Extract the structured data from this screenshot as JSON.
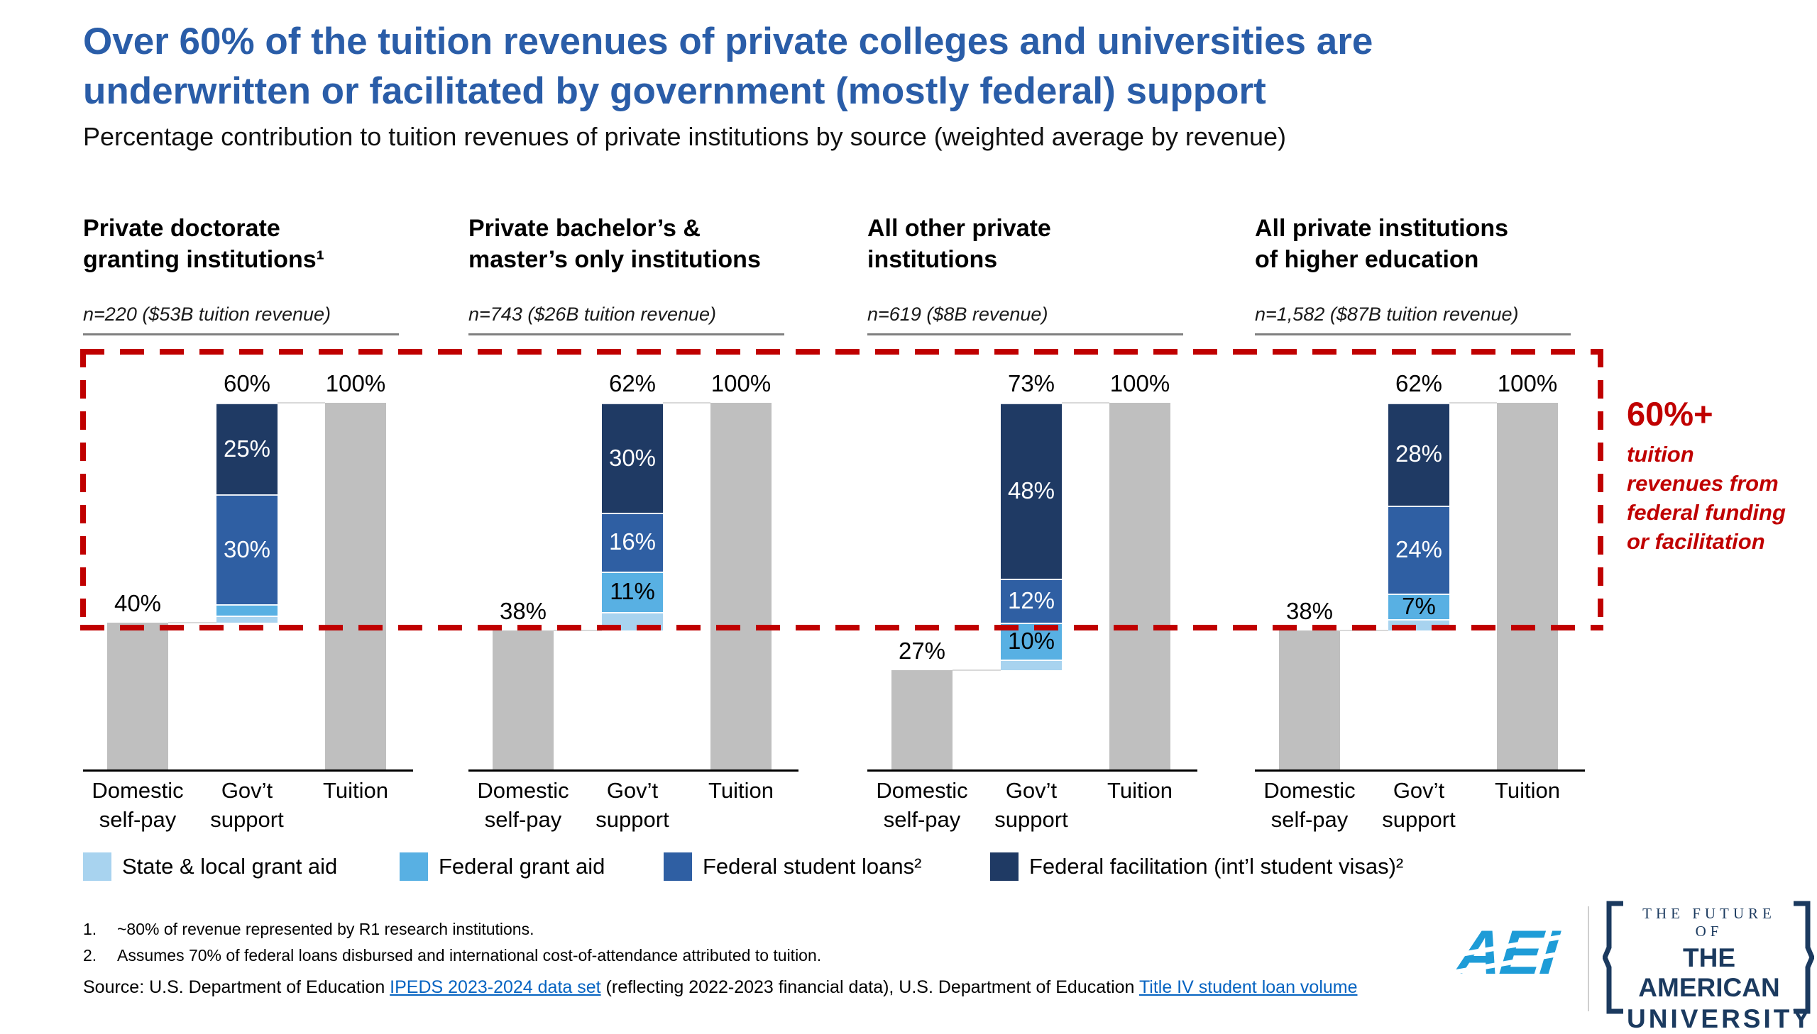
{
  "title": "Over 60% of the tuition revenues of private colleges and universities are\nunderwritten or facilitated by government (mostly federal) support",
  "subtitle": "Percentage contribution to tuition revenues of private institutions by source (weighted average by revenue)",
  "colors": {
    "title_blue": "#2A5DA8",
    "accent_red": "#C00000",
    "bar_gray": "#BFBFBF",
    "state_local_blue": "#A8D3EF",
    "federal_grant_blue": "#58B0E3",
    "student_loans_blue": "#2F5FA3",
    "facilitation_navy": "#1F3A64",
    "link_blue": "#0563C1",
    "aei_blue": "#1E9CD7",
    "logo_navy": "#1B3A5F",
    "connector_gray": "#D9D9D9"
  },
  "chart_data": {
    "type": "bar",
    "subtype": "waterfall_stacked_percent",
    "unit": "%",
    "ylim": [
      0,
      100
    ],
    "categories": [
      "Domestic\nself-pay",
      "Gov’t\nsupport",
      "Tuition"
    ],
    "legend": [
      {
        "key": "state_local_blue",
        "label": "State & local grant aid"
      },
      {
        "key": "federal_grant_blue",
        "label": "Federal grant aid"
      },
      {
        "key": "student_loans_blue",
        "label": "Federal student loans²"
      },
      {
        "key": "facilitation_navy",
        "label": "Federal facilitation (int’l student visas)²"
      }
    ],
    "groups": [
      {
        "title": "Private doctorate\ngranting institutions¹",
        "n_label": "n=220 ($53B tuition revenue)",
        "domestic_self_pay": {
          "value": 40,
          "label": "40%"
        },
        "govt_support": {
          "total": 60,
          "label": "60%",
          "segments": [
            {
              "key": "state_local_blue",
              "name": "State & local grant aid",
              "value": 2,
              "label": "",
              "label_color": "#000000"
            },
            {
              "key": "federal_grant_blue",
              "name": "Federal grant aid",
              "value": 3,
              "label": "",
              "label_color": "#000000"
            },
            {
              "key": "student_loans_blue",
              "name": "Federal student loans",
              "value": 30,
              "label": "30%",
              "label_color": "#FFFFFF"
            },
            {
              "key": "facilitation_navy",
              "name": "Federal facilitation (int’l student visas)",
              "value": 25,
              "label": "25%",
              "label_color": "#FFFFFF"
            }
          ]
        },
        "tuition": {
          "value": 100,
          "label": "100%"
        }
      },
      {
        "title": "Private bachelor’s &\nmaster’s only institutions",
        "n_label": "n=743 ($26B tuition revenue)",
        "domestic_self_pay": {
          "value": 38,
          "label": "38%"
        },
        "govt_support": {
          "total": 62,
          "label": "62%",
          "segments": [
            {
              "key": "state_local_blue",
              "name": "State & local grant aid",
              "value": 5,
              "label": "",
              "label_color": "#000000"
            },
            {
              "key": "federal_grant_blue",
              "name": "Federal grant aid",
              "value": 11,
              "label": "11%",
              "label_color": "#000000"
            },
            {
              "key": "student_loans_blue",
              "name": "Federal student loans",
              "value": 16,
              "label": "16%",
              "label_color": "#FFFFFF"
            },
            {
              "key": "facilitation_navy",
              "name": "Federal facilitation (int’l student visas)",
              "value": 30,
              "label": "30%",
              "label_color": "#FFFFFF"
            }
          ]
        },
        "tuition": {
          "value": 100,
          "label": "100%"
        }
      },
      {
        "title": "All other private\ninstitutions",
        "n_label": "n=619 ($8B revenue)",
        "domestic_self_pay": {
          "value": 27,
          "label": "27%"
        },
        "govt_support": {
          "total": 73,
          "label": "73%",
          "segments": [
            {
              "key": "state_local_blue",
              "name": "State & local grant aid",
              "value": 3,
              "label": "",
              "label_color": "#000000"
            },
            {
              "key": "federal_grant_blue",
              "name": "Federal grant aid",
              "value": 10,
              "label": "10%",
              "label_color": "#000000"
            },
            {
              "key": "student_loans_blue",
              "name": "Federal student loans",
              "value": 12,
              "label": "12%",
              "label_color": "#FFFFFF"
            },
            {
              "key": "facilitation_navy",
              "name": "Federal facilitation (int’l student visas)",
              "value": 48,
              "label": "48%",
              "label_color": "#FFFFFF"
            }
          ]
        },
        "tuition": {
          "value": 100,
          "label": "100%"
        }
      },
      {
        "title": "All private institutions\nof higher education",
        "n_label": "n=1,582 ($87B tuition revenue)",
        "domestic_self_pay": {
          "value": 38,
          "label": "38%"
        },
        "govt_support": {
          "total": 62,
          "label": "62%",
          "segments": [
            {
              "key": "state_local_blue",
              "name": "State & local grant aid",
              "value": 3,
              "label": "",
              "label_color": "#000000"
            },
            {
              "key": "federal_grant_blue",
              "name": "Federal grant aid",
              "value": 7,
              "label": "7%",
              "label_color": "#000000"
            },
            {
              "key": "student_loans_blue",
              "name": "Federal student loans",
              "value": 24,
              "label": "24%",
              "label_color": "#FFFFFF"
            },
            {
              "key": "facilitation_navy",
              "name": "Federal facilitation (int’l student visas)",
              "value": 28,
              "label": "28%",
              "label_color": "#FFFFFF"
            }
          ]
        },
        "tuition": {
          "value": 100,
          "label": "100%"
        }
      }
    ],
    "annotation": {
      "headline": "60%+",
      "body": "tuition revenues from federal funding or facilitation"
    }
  },
  "footnotes": [
    {
      "num": "1.",
      "text": "~80% of revenue represented by R1 research institutions."
    },
    {
      "num": "2.",
      "text": "Assumes 70% of federal loans disbursed and international cost-of-attendance attributed to tuition."
    }
  ],
  "source": {
    "parts": [
      {
        "text": "Source: U.S. Department of Education ",
        "link": false
      },
      {
        "text": "IPEDS 2023-2024 data set",
        "link": true
      },
      {
        "text": " (reflecting 2022-2023 financial data), U.S. Department of Education ",
        "link": false
      },
      {
        "text": "Title IV student loan volume",
        "link": true
      }
    ]
  },
  "logos": {
    "aei": "AEI",
    "future": {
      "top": "THE FUTURE OF",
      "middle": "THE AMERICAN",
      "bottom": "UNIVERSITY"
    }
  }
}
